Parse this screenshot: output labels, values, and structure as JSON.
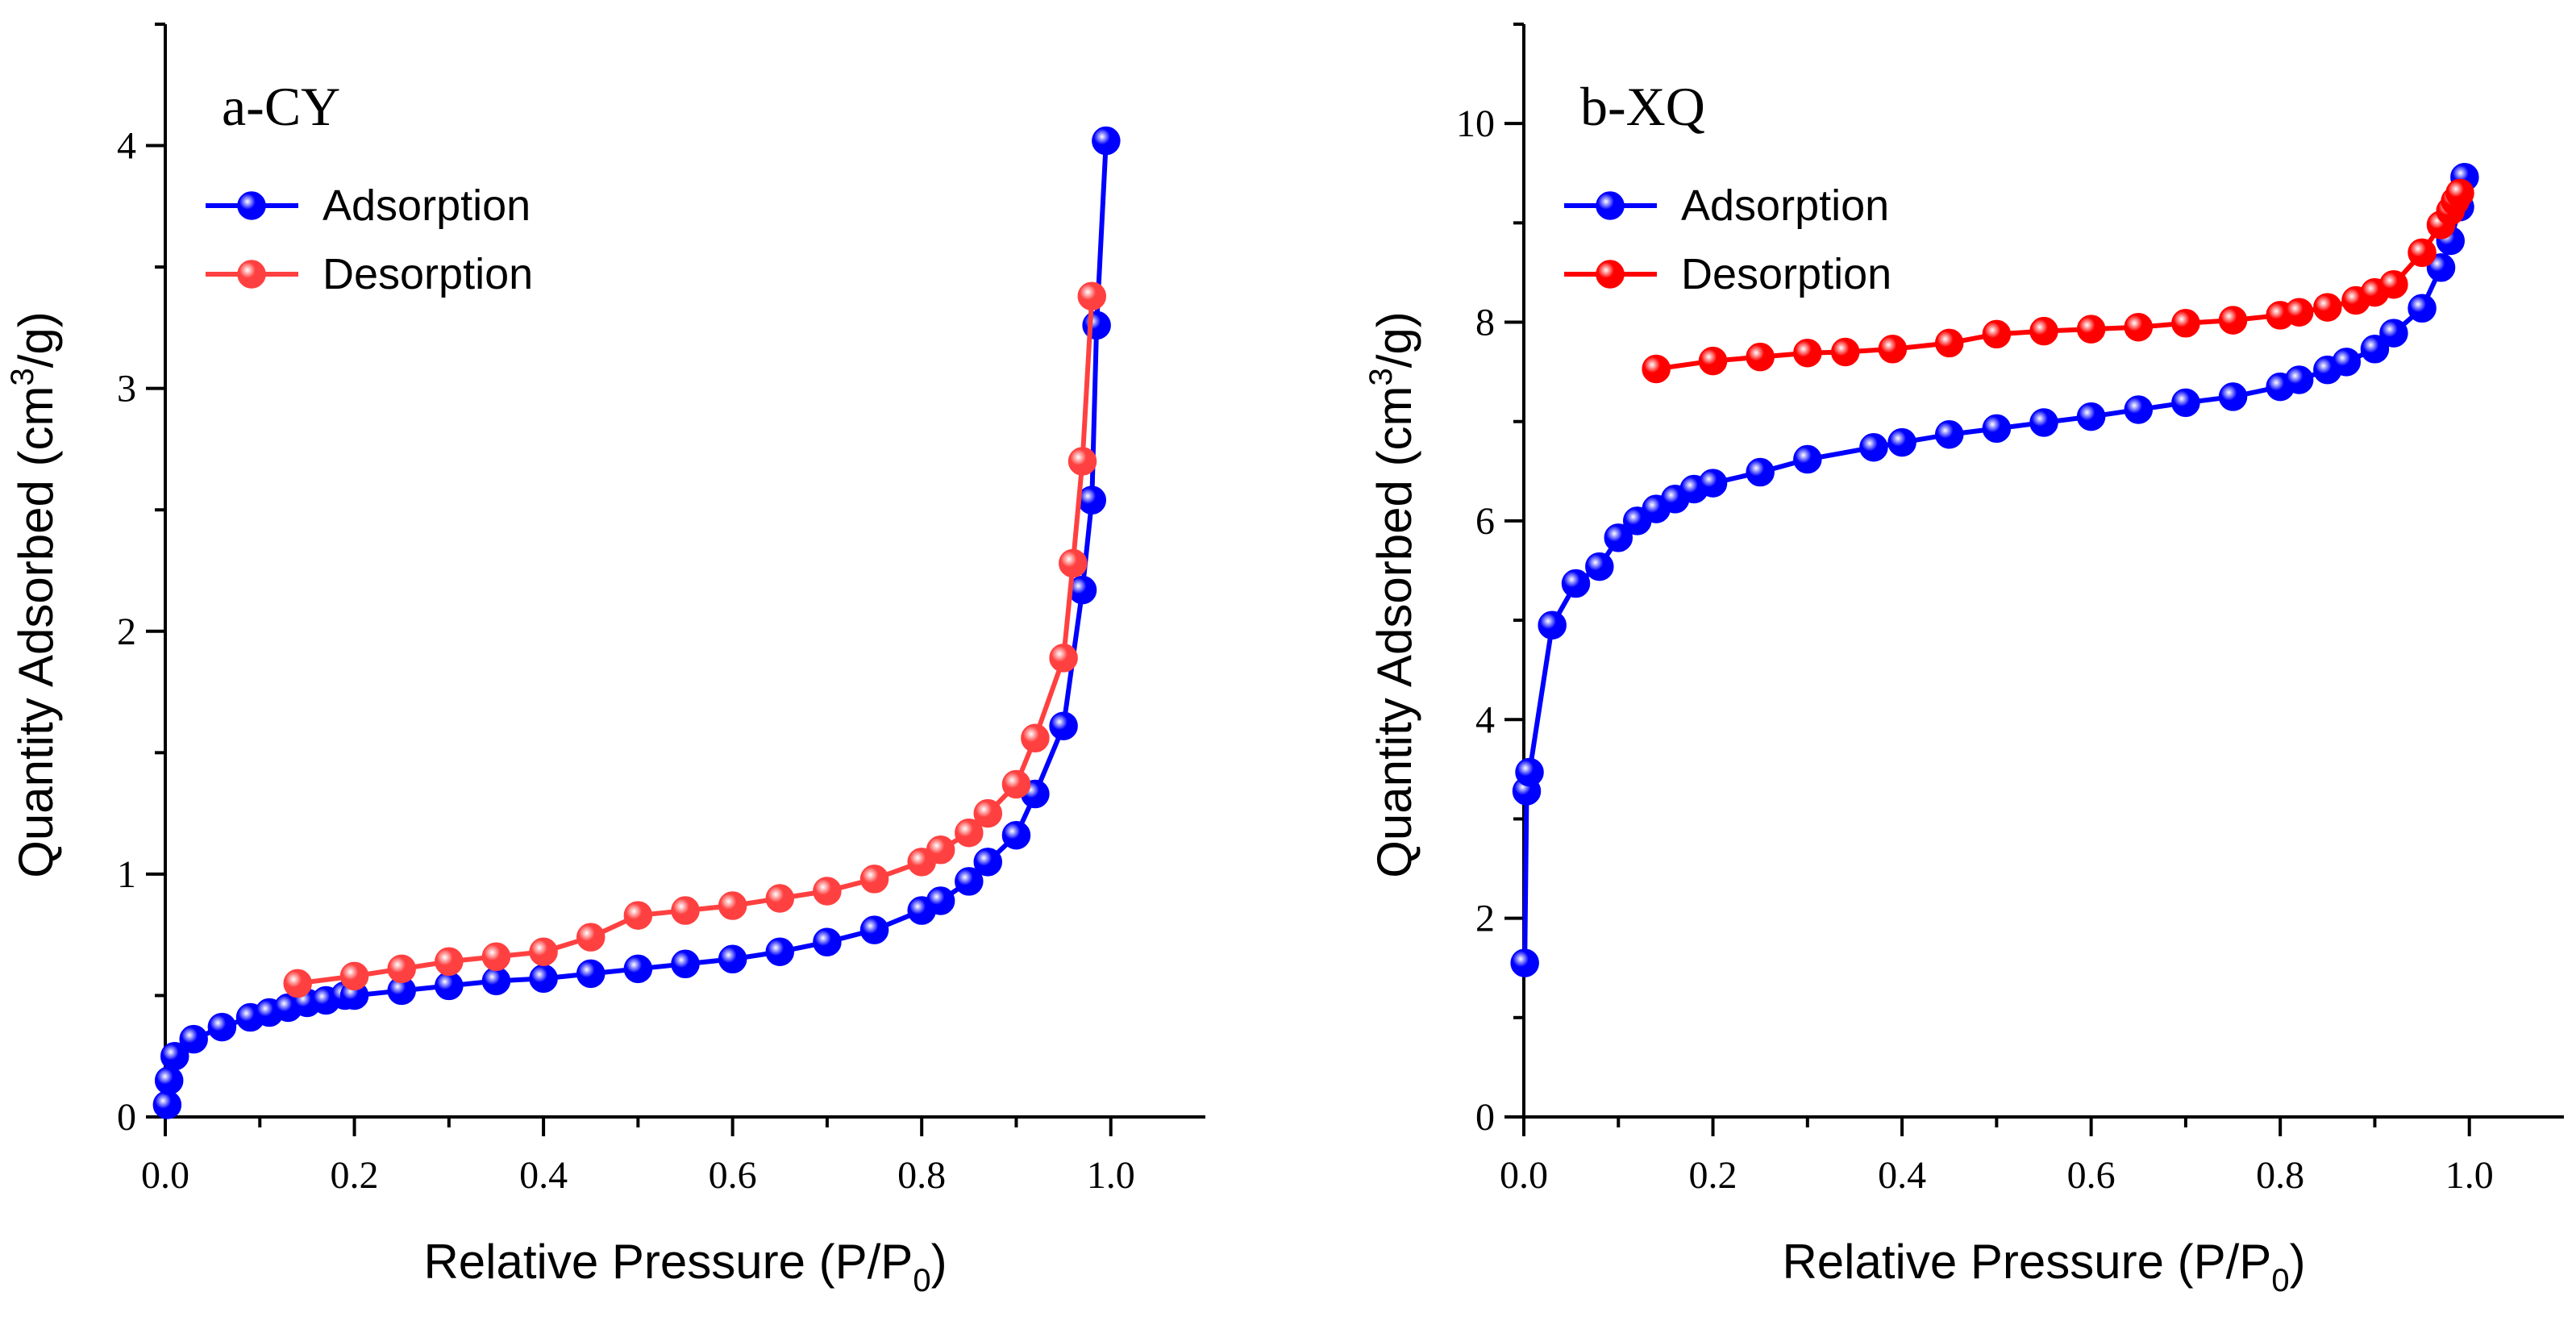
{
  "chart_data": [
    {
      "id": "a",
      "type": "line",
      "title": "a-CY",
      "xlabel_main": "Relative Pressure (P/P",
      "xlabel_sub": "0",
      "xlabel_end": ")",
      "ylabel_main": "Quantity Adsorbed (cm",
      "ylabel_sup": "3",
      "ylabel_end": "/g)",
      "xlim": [
        0,
        1.1
      ],
      "ylim": [
        0,
        4.5
      ],
      "xticks": [
        0.0,
        0.2,
        0.4,
        0.6,
        0.8,
        1.0
      ],
      "xtick_labels": [
        "0.0",
        "0.2",
        "0.4",
        "0.6",
        "0.8",
        "1.0"
      ],
      "yticks": [
        0,
        1,
        2,
        3,
        4
      ],
      "ytick_labels": [
        "0",
        "1",
        "2",
        "3",
        "4"
      ],
      "legend_position": "top-left",
      "series": [
        {
          "name": "Adsorption",
          "color": "#0000ff",
          "x": [
            0.002,
            0.004,
            0.01,
            0.03,
            0.06,
            0.09,
            0.11,
            0.13,
            0.15,
            0.17,
            0.19,
            0.2,
            0.25,
            0.3,
            0.35,
            0.4,
            0.45,
            0.5,
            0.55,
            0.6,
            0.65,
            0.7,
            0.75,
            0.8,
            0.82,
            0.85,
            0.87,
            0.9,
            0.92,
            0.95,
            0.97,
            0.98,
            0.985,
            0.995
          ],
          "y": [
            0.05,
            0.15,
            0.25,
            0.32,
            0.37,
            0.41,
            0.43,
            0.45,
            0.47,
            0.48,
            0.5,
            0.5,
            0.52,
            0.54,
            0.56,
            0.57,
            0.59,
            0.61,
            0.63,
            0.65,
            0.68,
            0.72,
            0.77,
            0.85,
            0.89,
            0.97,
            1.05,
            1.16,
            1.33,
            1.61,
            2.17,
            2.54,
            3.26,
            4.02
          ]
        },
        {
          "name": "Desorption",
          "color": "#ff4040",
          "x": [
            0.14,
            0.2,
            0.25,
            0.3,
            0.35,
            0.4,
            0.45,
            0.5,
            0.55,
            0.6,
            0.65,
            0.7,
            0.75,
            0.8,
            0.82,
            0.85,
            0.87,
            0.9,
            0.92,
            0.95,
            0.96,
            0.97,
            0.98
          ],
          "y": [
            0.55,
            0.58,
            0.61,
            0.64,
            0.66,
            0.68,
            0.74,
            0.83,
            0.85,
            0.87,
            0.9,
            0.93,
            0.98,
            1.05,
            1.1,
            1.17,
            1.25,
            1.37,
            1.56,
            1.89,
            2.28,
            2.7,
            3.38
          ]
        }
      ]
    },
    {
      "id": "b",
      "type": "line",
      "title": "b-XQ",
      "xlabel_main": "Relative Pressure (P/P",
      "xlabel_sub": "0",
      "xlabel_end": ")",
      "ylabel_main": "Quantity Adsorbed (cm",
      "ylabel_sup": "3",
      "ylabel_end": "/g)",
      "xlim": [
        0,
        1.1
      ],
      "ylim": [
        0,
        11
      ],
      "xticks": [
        0.0,
        0.2,
        0.4,
        0.6,
        0.8,
        1.0
      ],
      "xtick_labels": [
        "0.0",
        "0.2",
        "0.4",
        "0.6",
        "0.8",
        "1.0"
      ],
      "yticks": [
        0,
        2,
        4,
        6,
        8,
        10
      ],
      "ytick_labels": [
        "0",
        "2",
        "4",
        "6",
        "8",
        "10"
      ],
      "legend_position": "top-left",
      "series": [
        {
          "name": "Adsorption",
          "color": "#0000ff",
          "x": [
            0.001,
            0.003,
            0.006,
            0.03,
            0.055,
            0.08,
            0.1,
            0.12,
            0.14,
            0.16,
            0.18,
            0.2,
            0.25,
            0.3,
            0.37,
            0.4,
            0.45,
            0.5,
            0.55,
            0.6,
            0.65,
            0.7,
            0.75,
            0.8,
            0.82,
            0.85,
            0.87,
            0.9,
            0.92,
            0.95,
            0.97,
            0.98,
            0.99,
            0.995
          ],
          "y": [
            1.55,
            3.28,
            3.47,
            4.95,
            5.37,
            5.54,
            5.83,
            6.0,
            6.12,
            6.22,
            6.32,
            6.38,
            6.49,
            6.62,
            6.74,
            6.79,
            6.87,
            6.93,
            6.99,
            7.05,
            7.12,
            7.19,
            7.25,
            7.35,
            7.42,
            7.52,
            7.6,
            7.73,
            7.89,
            8.14,
            8.55,
            8.82,
            9.16,
            9.46
          ]
        },
        {
          "name": "Desorption",
          "color": "#ff0000",
          "x": [
            0.14,
            0.2,
            0.25,
            0.3,
            0.34,
            0.39,
            0.45,
            0.5,
            0.55,
            0.6,
            0.65,
            0.7,
            0.75,
            0.8,
            0.82,
            0.85,
            0.88,
            0.9,
            0.92,
            0.95,
            0.97,
            0.98,
            0.985,
            0.99
          ],
          "y": [
            7.53,
            7.61,
            7.65,
            7.69,
            7.7,
            7.73,
            7.79,
            7.88,
            7.91,
            7.93,
            7.95,
            7.99,
            8.02,
            8.07,
            8.1,
            8.15,
            8.22,
            8.3,
            8.38,
            8.7,
            8.98,
            9.12,
            9.22,
            9.3
          ]
        }
      ]
    }
  ]
}
